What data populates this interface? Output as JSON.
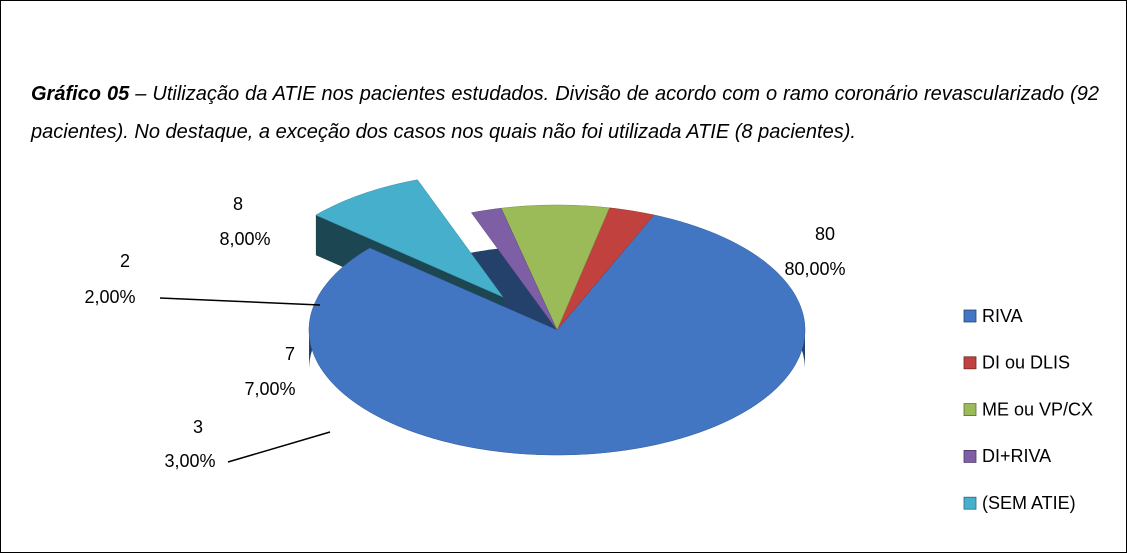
{
  "chart_data": {
    "type": "pie3d",
    "title": "Gráfico 05",
    "subtitle": "– Utilização da ATIE nos pacientes estudados. Divisão de acordo com o ramo coronário revascularizado (92 pacientes). No destaque, a exceção dos casos nos quais não foi utilizada ATIE (8 pacientes).",
    "categories": [
      "RIVA",
      "DI ou DLIS",
      "ME ou VP/CX",
      "DI+RIVA",
      "(SEM ATIE)"
    ],
    "values": [
      80,
      3,
      7,
      2,
      8
    ],
    "value_labels": [
      "80,00%",
      "3,00%",
      "7,00%",
      "2,00%",
      "8,00%"
    ],
    "colors": [
      "#4276c2",
      "#c0413d",
      "#9bbb59",
      "#7e5fa6",
      "#46b0cc"
    ],
    "exploded": [
      4
    ],
    "legend": "right"
  }
}
